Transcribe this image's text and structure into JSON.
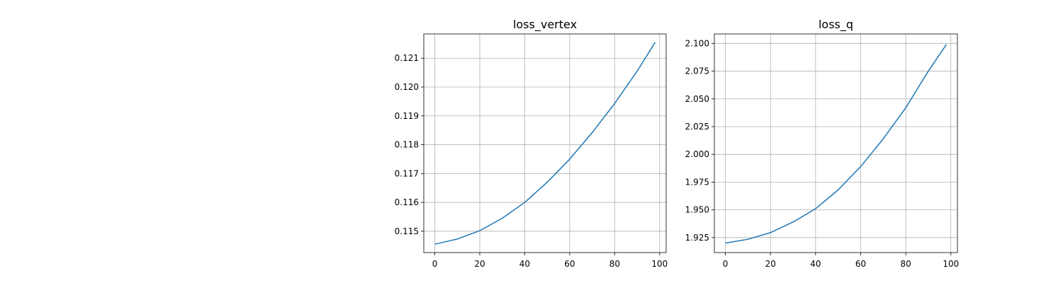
{
  "chart_data": [
    {
      "type": "line",
      "title": "loss_vertex",
      "xlabel": "",
      "ylabel": "",
      "xlim": [
        -4.9,
        102.9
      ],
      "ylim": [
        0.11426,
        0.12184
      ],
      "xticks": [
        0,
        20,
        40,
        60,
        80,
        100
      ],
      "yticks": [
        0.115,
        0.116,
        0.117,
        0.118,
        0.119,
        0.12,
        0.121
      ],
      "ytick_format_decimals": 3,
      "grid": true,
      "legend": "none",
      "series": [
        {
          "color": "#1f77b4",
          "x": [
            0,
            10,
            20,
            30,
            40,
            50,
            60,
            70,
            80,
            90,
            98
          ],
          "y": [
            0.11455,
            0.11473,
            0.11502,
            0.11545,
            0.116,
            0.1167,
            0.1175,
            0.11842,
            0.11943,
            0.12055,
            0.12155
          ]
        }
      ]
    },
    {
      "type": "line",
      "title": "loss_q",
      "xlabel": "",
      "ylabel": "",
      "xlim": [
        -4.9,
        102.9
      ],
      "ylim": [
        1.9115,
        2.1085
      ],
      "xticks": [
        0,
        20,
        40,
        60,
        80,
        100
      ],
      "yticks": [
        1.925,
        1.95,
        1.975,
        2.0,
        2.025,
        2.05,
        2.075,
        2.1
      ],
      "ytick_format_decimals": 3,
      "grid": true,
      "legend": "none",
      "series": [
        {
          "color": "#1f77b4",
          "x": [
            0,
            10,
            20,
            30,
            40,
            50,
            60,
            70,
            80,
            90,
            98
          ],
          "y": [
            1.92,
            1.9235,
            1.9295,
            1.939,
            1.951,
            1.968,
            1.989,
            2.014,
            2.042,
            2.075,
            2.099
          ]
        }
      ]
    }
  ]
}
